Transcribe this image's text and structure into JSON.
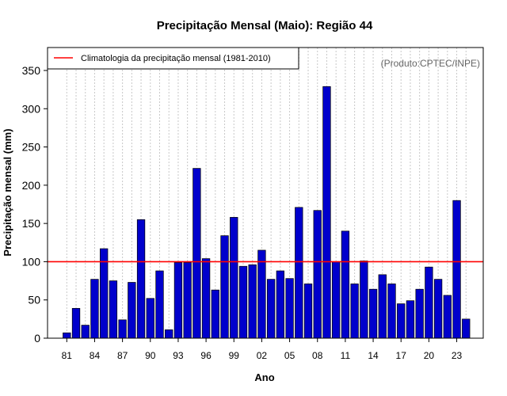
{
  "chart_data": {
    "type": "bar",
    "title": "Precipitação Mensal (Maio): Região 44",
    "xlabel": "Ano",
    "ylabel": "Precipitação mensal (mm)",
    "source_note": "(Produto:CPTEC/INPE)",
    "legend": {
      "position": "top-left",
      "label": "Climatologia da precipitação mensal (1981-2010)"
    },
    "ylim": [
      0,
      380
    ],
    "yticks": [
      0,
      50,
      100,
      150,
      200,
      250,
      300,
      350
    ],
    "grid": true,
    "years": [
      1981,
      1982,
      1983,
      1984,
      1985,
      1986,
      1987,
      1988,
      1989,
      1990,
      1991,
      1992,
      1993,
      1994,
      1995,
      1996,
      1997,
      1998,
      1999,
      2000,
      2001,
      2002,
      2003,
      2004,
      2005,
      2006,
      2007,
      2008,
      2009,
      2010,
      2011,
      2012,
      2013,
      2014,
      2015,
      2016,
      2017,
      2018,
      2019,
      2020,
      2021,
      2022,
      2023,
      2024
    ],
    "categories": [
      "81",
      "82",
      "83",
      "84",
      "85",
      "86",
      "87",
      "88",
      "89",
      "90",
      "91",
      "92",
      "93",
      "94",
      "95",
      "96",
      "97",
      "98",
      "99",
      "00",
      "01",
      "02",
      "03",
      "04",
      "05",
      "06",
      "07",
      "08",
      "09",
      "10",
      "11",
      "12",
      "13",
      "14",
      "15",
      "16",
      "17",
      "18",
      "19",
      "20",
      "21",
      "22",
      "23",
      "24"
    ],
    "x_tick_labels": [
      "81",
      "84",
      "87",
      "90",
      "93",
      "96",
      "99",
      "02",
      "05",
      "08",
      "11",
      "14",
      "17",
      "20",
      "23"
    ],
    "values": [
      7,
      39,
      17,
      77,
      117,
      75,
      24,
      73,
      155,
      52,
      88,
      11,
      99,
      99,
      222,
      104,
      63,
      134,
      158,
      94,
      96,
      115,
      77,
      88,
      78,
      171,
      71,
      167,
      329,
      100,
      140,
      71,
      101,
      64,
      83,
      71,
      45,
      49,
      64,
      93,
      77,
      56,
      180,
      25
    ],
    "climatology": 100,
    "bar_color": "#0000cc",
    "climatology_color": "#ff0000"
  }
}
